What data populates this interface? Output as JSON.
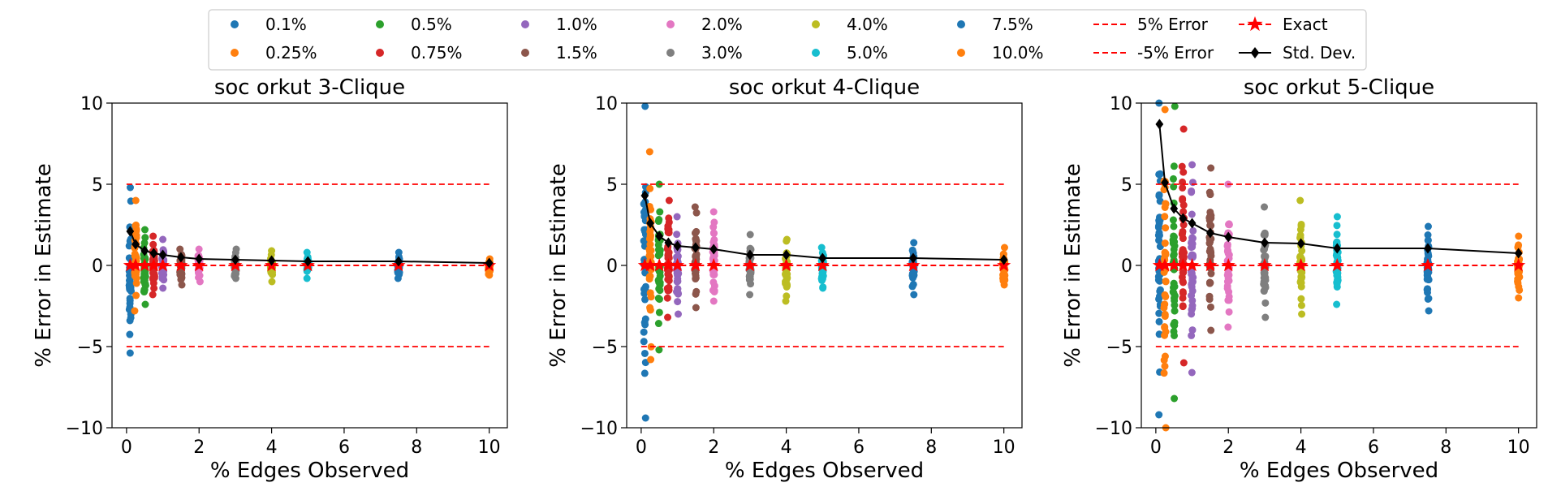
{
  "legend": {
    "placement": "upper-center",
    "entries": [
      {
        "label": "0.1%",
        "marker": "circle",
        "color": "#1f77b4"
      },
      {
        "label": "0.25%",
        "marker": "circle",
        "color": "#ff7f0e"
      },
      {
        "label": "0.5%",
        "marker": "circle",
        "color": "#2ca02c"
      },
      {
        "label": "0.75%",
        "marker": "circle",
        "color": "#d62728"
      },
      {
        "label": "1.0%",
        "marker": "circle",
        "color": "#9467bd"
      },
      {
        "label": "1.5%",
        "marker": "circle",
        "color": "#8c564b"
      },
      {
        "label": "2.0%",
        "marker": "circle",
        "color": "#e377c2"
      },
      {
        "label": "3.0%",
        "marker": "circle",
        "color": "#7f7f7f"
      },
      {
        "label": "4.0%",
        "marker": "circle",
        "color": "#bcbd22"
      },
      {
        "label": "5.0%",
        "marker": "circle",
        "color": "#17becf"
      },
      {
        "label": "7.5%",
        "marker": "circle",
        "color": "#1f77b4"
      },
      {
        "label": "10.0%",
        "marker": "circle",
        "color": "#ff7f0e"
      },
      {
        "label": "5% Error",
        "marker": "dashed-line",
        "color": "#ff0000"
      },
      {
        "label": "-5% Error",
        "marker": "dashed-line",
        "color": "#ff0000"
      },
      {
        "label": "Exact",
        "marker": "star-dashed-line",
        "color": "#ff0000"
      },
      {
        "label": "Std. Dev.",
        "marker": "diamond-line",
        "color": "#000000"
      }
    ]
  },
  "chart_data": [
    {
      "type": "scatter",
      "title": "soc orkut 3-Clique",
      "xlabel": "% Edges Observed",
      "ylabel": "% Error in Estimate",
      "xlim": [
        -0.4,
        10.5
      ],
      "ylim": [
        -10,
        10
      ],
      "xticks": [
        0,
        2,
        4,
        6,
        8,
        10
      ],
      "yticks": [
        -10,
        -5,
        0,
        5,
        10
      ],
      "grid": false,
      "sample_x": [
        0.1,
        0.25,
        0.5,
        0.75,
        1.0,
        1.5,
        2.0,
        3.0,
        4.0,
        5.0,
        7.5,
        10.0
      ],
      "spread_min": [
        -5.4,
        -2.8,
        -2.4,
        -1.8,
        -1.4,
        -1.2,
        -1.0,
        -0.8,
        -1.0,
        -0.8,
        -0.8,
        -0.6
      ],
      "spread_max": [
        4.8,
        4.0,
        2.2,
        1.8,
        1.6,
        1.0,
        1.0,
        1.0,
        0.9,
        0.8,
        0.8,
        0.4
      ],
      "std_dev": [
        2.1,
        1.3,
        0.9,
        0.75,
        0.65,
        0.5,
        0.4,
        0.35,
        0.3,
        0.25,
        0.25,
        0.15
      ],
      "error_band": [
        5,
        -5
      ],
      "exact": 0
    },
    {
      "type": "scatter",
      "title": "soc orkut 4-Clique",
      "xlabel": "% Edges Observed",
      "ylabel": "% Error in Estimate",
      "xlim": [
        -0.4,
        10.5
      ],
      "ylim": [
        -10,
        10
      ],
      "xticks": [
        0,
        2,
        4,
        6,
        8,
        10
      ],
      "yticks": [
        -10,
        -5,
        0,
        5,
        10
      ],
      "grid": false,
      "sample_x": [
        0.1,
        0.25,
        0.5,
        0.75,
        1.0,
        1.5,
        2.0,
        3.0,
        4.0,
        5.0,
        7.5,
        10.0
      ],
      "spread_min": [
        -9.4,
        -5.8,
        -5.2,
        -3.2,
        -3.0,
        -2.6,
        -2.2,
        -1.8,
        -2.2,
        -1.4,
        -1.8,
        -1.2
      ],
      "spread_max": [
        9.8,
        7.0,
        5.0,
        4.0,
        3.0,
        3.6,
        3.3,
        1.9,
        1.6,
        1.1,
        1.4,
        1.1
      ],
      "std_dev": [
        4.3,
        2.6,
        1.8,
        1.4,
        1.2,
        1.1,
        1.0,
        0.65,
        0.65,
        0.45,
        0.45,
        0.35
      ],
      "error_band": [
        5,
        -5
      ],
      "exact": 0
    },
    {
      "type": "scatter",
      "title": "soc orkut 5-Clique",
      "xlabel": "% Edges Observed",
      "ylabel": "% Error in Estimate",
      "xlim": [
        -0.4,
        10.5
      ],
      "ylim": [
        -10,
        10
      ],
      "xticks": [
        0,
        2,
        4,
        6,
        8,
        10
      ],
      "yticks": [
        -10,
        -5,
        0,
        5,
        10
      ],
      "grid": false,
      "sample_x": [
        0.1,
        0.25,
        0.5,
        0.75,
        1.0,
        1.5,
        2.0,
        3.0,
        4.0,
        5.0,
        7.5,
        10.0
      ],
      "spread_min": [
        -9.2,
        -10.0,
        -8.2,
        -6.0,
        -6.6,
        -4.0,
        -3.8,
        -3.2,
        -3.0,
        -2.4,
        -2.8,
        -2.0
      ],
      "spread_max": [
        10.0,
        9.6,
        9.8,
        8.4,
        6.2,
        6.0,
        5.0,
        3.6,
        4.0,
        3.0,
        2.4,
        1.8
      ],
      "std_dev": [
        8.7,
        5.1,
        3.5,
        2.9,
        2.6,
        2.0,
        1.75,
        1.4,
        1.35,
        1.05,
        1.05,
        0.75
      ],
      "error_band": [
        5,
        -5
      ],
      "exact": 0
    }
  ]
}
